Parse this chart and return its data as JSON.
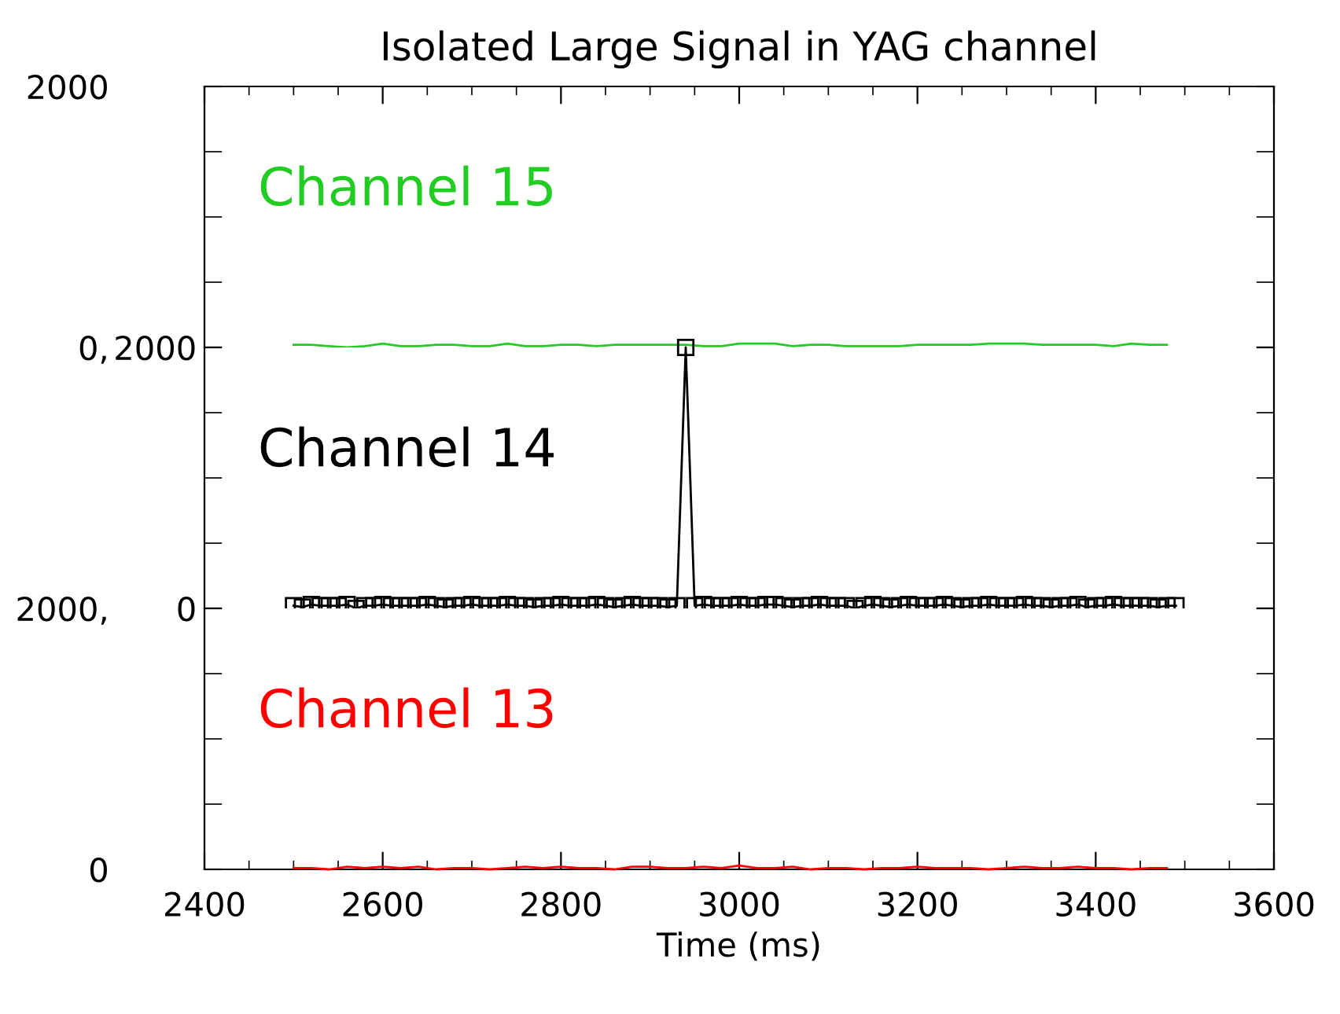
{
  "chart_data": [
    {
      "type": "line",
      "title": "Isolated Large Signal in YAG channel",
      "tick_labels": "y",
      "xlim": [
        2400,
        3600
      ],
      "xticks": [
        2400,
        {
          "value": 2450,
          "label": null
        },
        {
          "value": 2500,
          "label": null
        },
        {
          "value": 2550,
          "label": null
        },
        2600,
        {
          "value": 2650,
          "label": null
        },
        {
          "value": 2700,
          "label": null
        },
        {
          "value": 2750,
          "label": null
        },
        2800,
        {
          "value": 2850,
          "label": null
        },
        {
          "value": 2900,
          "label": null
        },
        {
          "value": 2950,
          "label": null
        },
        3000,
        {
          "value": 3050,
          "label": null
        },
        {
          "value": 3100,
          "label": null
        },
        {
          "value": 3150,
          "label": null
        },
        3200,
        {
          "value": 3250,
          "label": null
        },
        {
          "value": 3300,
          "label": null
        },
        {
          "value": 3350,
          "label": null
        },
        3400,
        {
          "value": 3450,
          "label": null
        },
        {
          "value": 3500,
          "label": null
        },
        {
          "value": 3550,
          "label": null
        },
        3600
      ],
      "ylim": [
        0,
        2000
      ],
      "yticks": [
        {
          "value": 0,
          "label": "0,"
        },
        {
          "value": 500,
          "label": null
        },
        {
          "value": 1000,
          "label": null
        },
        {
          "value": 1500,
          "label": null
        },
        2000
      ],
      "series": [
        {
          "name": "Channel 15",
          "color": "#22cc22",
          "marker": "none",
          "x": [
            2500,
            2520,
            2540,
            2560,
            2580,
            2600,
            2620,
            2640,
            2660,
            2680,
            2700,
            2720,
            2740,
            2760,
            2780,
            2800,
            2820,
            2840,
            2860,
            2880,
            2900,
            2920,
            2940,
            2960,
            2980,
            3000,
            3020,
            3040,
            3060,
            3080,
            3100,
            3120,
            3140,
            3160,
            3180,
            3200,
            3220,
            3240,
            3260,
            3280,
            3300,
            3320,
            3340,
            3360,
            3380,
            3400,
            3420,
            3440,
            3460,
            3480
          ],
          "values": [
            20,
            20,
            10,
            0,
            10,
            30,
            10,
            10,
            20,
            20,
            10,
            10,
            30,
            10,
            10,
            20,
            20,
            10,
            20,
            20,
            20,
            20,
            20,
            10,
            10,
            30,
            30,
            30,
            10,
            20,
            20,
            10,
            10,
            10,
            10,
            20,
            20,
            20,
            20,
            30,
            30,
            30,
            20,
            20,
            20,
            20,
            10,
            30,
            20,
            20
          ]
        }
      ]
    },
    {
      "type": "line",
      "tick_labels": "y",
      "xlim": [
        2400,
        3600
      ],
      "ylim": [
        0,
        2000
      ],
      "yticks": [
        0,
        {
          "value": 500,
          "label": null
        },
        {
          "value": 1000,
          "label": null
        },
        {
          "value": 1500,
          "label": null
        },
        2000
      ],
      "series": [
        {
          "name": "Channel 14",
          "color": "#000000",
          "marker": "square",
          "x": [
            2500,
            2510,
            2520,
            2530,
            2540,
            2550,
            2560,
            2570,
            2580,
            2590,
            2600,
            2610,
            2620,
            2630,
            2640,
            2650,
            2660,
            2670,
            2680,
            2690,
            2700,
            2710,
            2720,
            2730,
            2740,
            2750,
            2760,
            2770,
            2780,
            2790,
            2800,
            2810,
            2820,
            2830,
            2840,
            2850,
            2860,
            2870,
            2880,
            2890,
            2900,
            2910,
            2920,
            2930,
            2940,
            2950,
            2960,
            2970,
            2980,
            2990,
            3000,
            3010,
            3020,
            3030,
            3040,
            3050,
            3060,
            3070,
            3080,
            3090,
            3100,
            3110,
            3120,
            3130,
            3140,
            3150,
            3160,
            3170,
            3180,
            3190,
            3200,
            3210,
            3220,
            3230,
            3240,
            3250,
            3260,
            3270,
            3280,
            3290,
            3300,
            3310,
            3320,
            3330,
            3340,
            3350,
            3360,
            3370,
            3380,
            3390,
            3400,
            3410,
            3420,
            3430,
            3440,
            3450,
            3460,
            3470,
            3480,
            3490
          ],
          "values": [
            20,
            10,
            30,
            20,
            20,
            20,
            30,
            0,
            20,
            20,
            30,
            20,
            20,
            20,
            20,
            30,
            20,
            10,
            20,
            20,
            30,
            20,
            20,
            20,
            30,
            20,
            20,
            10,
            20,
            20,
            30,
            20,
            20,
            20,
            30,
            20,
            10,
            20,
            30,
            20,
            20,
            20,
            10,
            20,
            2000,
            20,
            30,
            20,
            20,
            20,
            30,
            20,
            20,
            30,
            30,
            20,
            10,
            20,
            20,
            30,
            20,
            20,
            20,
            0,
            20,
            30,
            20,
            10,
            20,
            30,
            20,
            20,
            20,
            30,
            20,
            10,
            20,
            20,
            30,
            20,
            20,
            20,
            30,
            20,
            20,
            10,
            20,
            20,
            30,
            10,
            20,
            20,
            30,
            20,
            20,
            20,
            20,
            10,
            20,
            20
          ]
        }
      ]
    },
    {
      "type": "line",
      "xlabel": "Time (ms)",
      "xlim": [
        2400,
        3600
      ],
      "xticks": [
        2400,
        {
          "value": 2450,
          "label": null
        },
        {
          "value": 2500,
          "label": null
        },
        {
          "value": 2550,
          "label": null
        },
        2600,
        {
          "value": 2650,
          "label": null
        },
        {
          "value": 2700,
          "label": null
        },
        {
          "value": 2750,
          "label": null
        },
        2800,
        {
          "value": 2850,
          "label": null
        },
        {
          "value": 2900,
          "label": null
        },
        {
          "value": 2950,
          "label": null
        },
        3000,
        {
          "value": 3050,
          "label": null
        },
        {
          "value": 3100,
          "label": null
        },
        {
          "value": 3150,
          "label": null
        },
        3200,
        {
          "value": 3250,
          "label": null
        },
        {
          "value": 3300,
          "label": null
        },
        {
          "value": 3350,
          "label": null
        },
        3400,
        {
          "value": 3450,
          "label": null
        },
        {
          "value": 3500,
          "label": null
        },
        {
          "value": 3550,
          "label": null
        },
        3600
      ],
      "ylim": [
        0,
        2000
      ],
      "yticks": [
        0,
        {
          "value": 500,
          "label": null
        },
        {
          "value": 1000,
          "label": null
        },
        {
          "value": 1500,
          "label": null
        },
        {
          "value": 2000,
          "label": "2000,"
        }
      ],
      "series": [
        {
          "name": "Channel 13",
          "color": "#ff0000",
          "marker": "none",
          "x": [
            2500,
            2520,
            2540,
            2560,
            2580,
            2600,
            2620,
            2640,
            2660,
            2680,
            2700,
            2720,
            2740,
            2760,
            2780,
            2800,
            2820,
            2840,
            2860,
            2880,
            2900,
            2920,
            2940,
            2960,
            2980,
            3000,
            3020,
            3040,
            3060,
            3080,
            3100,
            3120,
            3140,
            3160,
            3180,
            3200,
            3220,
            3240,
            3260,
            3280,
            3300,
            3320,
            3340,
            3360,
            3380,
            3400,
            3420,
            3440,
            3460,
            3480
          ],
          "values": [
            10,
            10,
            0,
            20,
            10,
            20,
            10,
            20,
            0,
            10,
            10,
            0,
            10,
            20,
            10,
            20,
            10,
            10,
            0,
            20,
            20,
            10,
            10,
            20,
            10,
            30,
            10,
            10,
            20,
            0,
            10,
            10,
            0,
            10,
            10,
            20,
            10,
            10,
            10,
            0,
            10,
            20,
            10,
            10,
            20,
            10,
            10,
            0,
            10,
            10
          ]
        }
      ]
    }
  ]
}
